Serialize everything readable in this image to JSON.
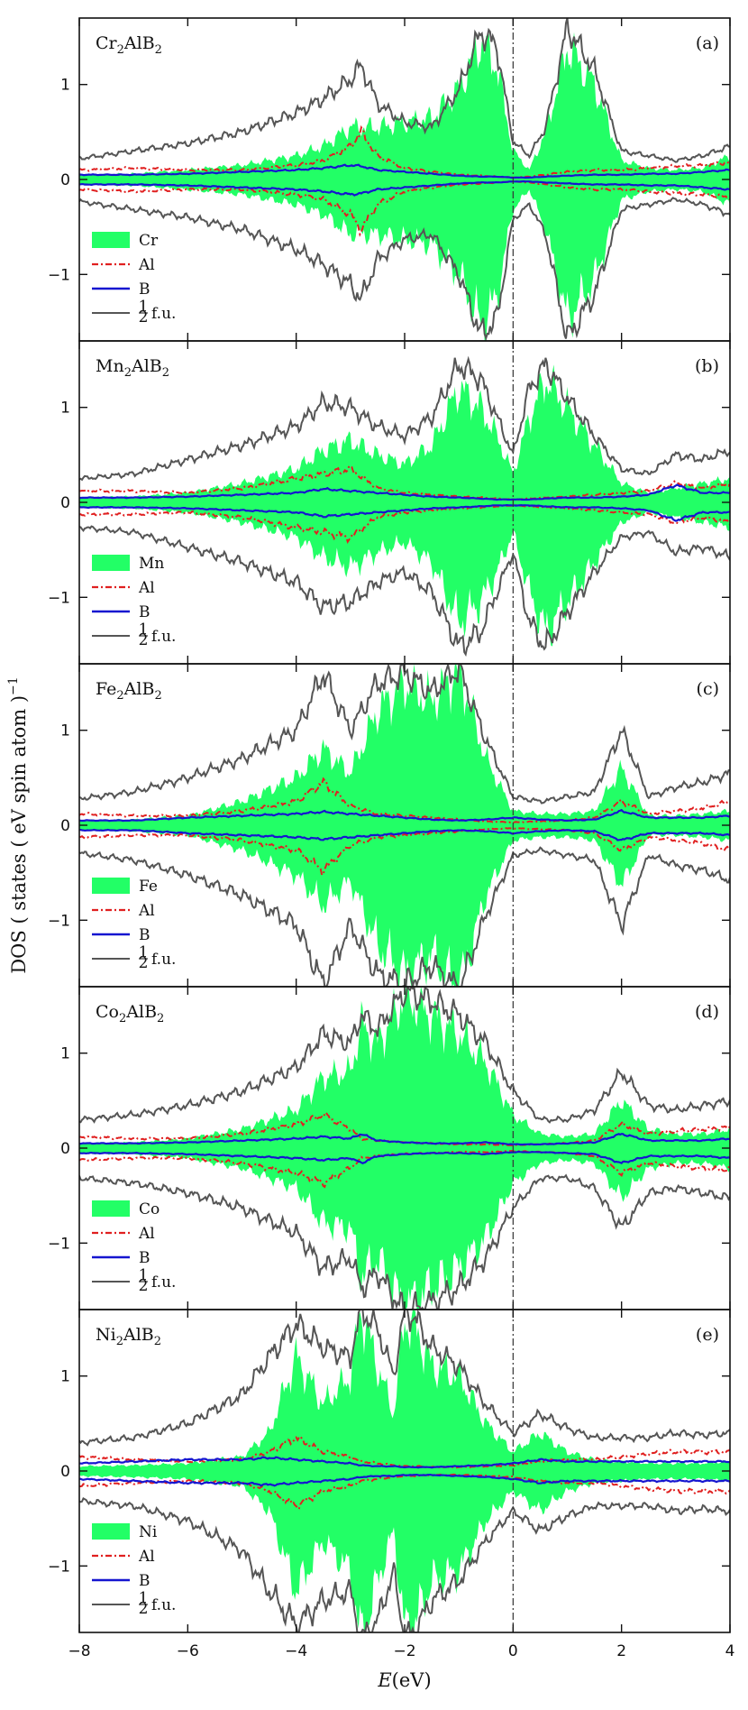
{
  "chart_data": {
    "type": "area",
    "ylabel": "DOS ( states ( eV spin atom )",
    "ylabel_exp": "−1",
    "xlabel": "E",
    "xlabel_unit": "(eV)",
    "xlim": [
      -8,
      4
    ],
    "ylim": [
      -1.7,
      1.7
    ],
    "xticks": [
      -8,
      -6,
      -4,
      -2,
      0,
      2,
      4
    ],
    "xtick_labels": [
      "−8",
      "−6",
      "−4",
      "−2",
      "0",
      "2",
      "4"
    ],
    "yticks": [
      -1,
      0,
      1
    ],
    "ytick_labels": [
      "−1",
      "0",
      "1"
    ],
    "fermi_level": 0,
    "colors": {
      "tm": "#22ff66",
      "al": "#e02020",
      "b": "#1515d0",
      "total": "#555555"
    },
    "panels": [
      {
        "tag": "(a)",
        "title_el": "Cr",
        "title_sub1": "2",
        "title_mid": "AlB",
        "title_sub2": "2",
        "legend": {
          "tm": "Cr",
          "al": "Al",
          "b": "B",
          "total_num": "1",
          "total_den": "2",
          "total_suffix": "f.u."
        },
        "series": {
          "x": [
            -8,
            -7,
            -6,
            -5,
            -4,
            -3.5,
            -3,
            -2.8,
            -2.5,
            -2,
            -1.5,
            -1,
            -0.6,
            -0.3,
            0,
            0.3,
            0.6,
            1,
            1.5,
            2,
            2.5,
            3,
            3.5,
            4
          ],
          "tm": [
            0.05,
            0.06,
            0.1,
            0.15,
            0.25,
            0.35,
            0.55,
            0.55,
            0.55,
            0.6,
            0.65,
            0.95,
            1.45,
            1.2,
            0.3,
            0.1,
            0.5,
            1.4,
            1.0,
            0.2,
            0.12,
            0.1,
            0.12,
            0.25
          ],
          "al": [
            0.1,
            0.12,
            0.1,
            0.1,
            0.15,
            0.2,
            0.35,
            0.5,
            0.25,
            0.12,
            0.08,
            0.05,
            0.04,
            0.03,
            0.02,
            0.03,
            0.05,
            0.08,
            0.1,
            0.1,
            0.12,
            0.14,
            0.15,
            0.18
          ],
          "b": [
            0.05,
            0.05,
            0.06,
            0.08,
            0.1,
            0.12,
            0.15,
            0.14,
            0.1,
            0.08,
            0.06,
            0.04,
            0.03,
            0.03,
            0.02,
            0.02,
            0.03,
            0.04,
            0.05,
            0.05,
            0.06,
            0.06,
            0.08,
            0.1
          ],
          "total": [
            0.22,
            0.3,
            0.38,
            0.5,
            0.7,
            0.85,
            1.05,
            1.2,
            0.8,
            0.6,
            0.55,
            0.95,
            1.55,
            1.4,
            0.4,
            0.25,
            0.55,
            1.6,
            1.15,
            0.3,
            0.25,
            0.2,
            0.25,
            0.35
          ]
        }
      },
      {
        "tag": "(b)",
        "title_el": "Mn",
        "title_sub1": "2",
        "title_mid": "AlB",
        "title_sub2": "2",
        "legend": {
          "tm": "Mn",
          "al": "Al",
          "b": "B",
          "total_num": "1",
          "total_den": "2",
          "total_suffix": "f.u."
        },
        "series": {
          "x": [
            -8,
            -7,
            -6,
            -5,
            -4,
            -3.5,
            -3,
            -2.5,
            -2,
            -1.5,
            -1,
            -0.6,
            -0.3,
            0,
            0.3,
            0.6,
            1,
            1.5,
            2,
            2.5,
            3,
            3.5,
            4
          ],
          "tm": [
            0.05,
            0.06,
            0.1,
            0.2,
            0.35,
            0.55,
            0.65,
            0.5,
            0.4,
            0.6,
            1.2,
            1.0,
            0.7,
            0.3,
            0.9,
            1.3,
            1.0,
            0.6,
            0.2,
            0.1,
            0.15,
            0.2,
            0.25
          ],
          "al": [
            0.12,
            0.12,
            0.1,
            0.15,
            0.25,
            0.3,
            0.35,
            0.15,
            0.1,
            0.08,
            0.06,
            0.05,
            0.04,
            0.03,
            0.04,
            0.05,
            0.06,
            0.08,
            0.1,
            0.12,
            0.2,
            0.15,
            0.2
          ],
          "b": [
            0.05,
            0.05,
            0.06,
            0.08,
            0.1,
            0.14,
            0.12,
            0.1,
            0.08,
            0.06,
            0.05,
            0.04,
            0.03,
            0.03,
            0.03,
            0.04,
            0.05,
            0.05,
            0.06,
            0.08,
            0.18,
            0.1,
            0.1
          ],
          "total": [
            0.25,
            0.3,
            0.45,
            0.6,
            0.8,
            1.05,
            1.0,
            0.8,
            0.7,
            0.9,
            1.45,
            1.3,
            0.9,
            0.5,
            1.2,
            1.45,
            1.1,
            0.7,
            0.35,
            0.3,
            0.5,
            0.45,
            0.55
          ]
        }
      },
      {
        "tag": "(c)",
        "title_el": "Fe",
        "title_sub1": "2",
        "title_mid": "AlB",
        "title_sub2": "2",
        "legend": {
          "tm": "Fe",
          "al": "Al",
          "b": "B",
          "total_num": "1",
          "total_den": "2",
          "total_suffix": "f.u."
        },
        "series": {
          "x": [
            -8,
            -7,
            -6,
            -5,
            -4,
            -3.5,
            -3,
            -2.5,
            -2,
            -1.5,
            -1,
            -0.5,
            0,
            0.5,
            1,
            1.5,
            2,
            2.5,
            3,
            3.5,
            4
          ],
          "tm": [
            0.05,
            0.06,
            0.1,
            0.25,
            0.5,
            0.8,
            0.55,
            1.2,
            1.5,
            1.3,
            1.65,
            0.7,
            0.15,
            0.12,
            0.12,
            0.15,
            0.6,
            0.1,
            0.1,
            0.12,
            0.15
          ],
          "al": [
            0.12,
            0.1,
            0.1,
            0.15,
            0.25,
            0.45,
            0.2,
            0.12,
            0.1,
            0.08,
            0.06,
            0.04,
            0.03,
            0.04,
            0.05,
            0.08,
            0.25,
            0.12,
            0.15,
            0.18,
            0.25
          ],
          "b": [
            0.05,
            0.05,
            0.08,
            0.1,
            0.12,
            0.14,
            0.12,
            0.1,
            0.08,
            0.06,
            0.05,
            0.06,
            0.08,
            0.06,
            0.05,
            0.06,
            0.15,
            0.08,
            0.08,
            0.08,
            0.1
          ],
          "total": [
            0.28,
            0.35,
            0.5,
            0.7,
            1.0,
            1.6,
            1.0,
            1.5,
            1.6,
            1.4,
            1.65,
            0.9,
            0.3,
            0.25,
            0.3,
            0.35,
            1.0,
            0.3,
            0.4,
            0.45,
            0.55
          ]
        }
      },
      {
        "tag": "(d)",
        "title_el": "Co",
        "title_sub1": "2",
        "title_mid": "AlB",
        "title_sub2": "2",
        "legend": {
          "tm": "Co",
          "al": "Al",
          "b": "B",
          "total_num": "1",
          "total_den": "2",
          "total_suffix": "f.u."
        },
        "series": {
          "x": [
            -8,
            -7,
            -6,
            -5,
            -4,
            -3.5,
            -3,
            -2.8,
            -2.5,
            -2,
            -1.5,
            -1,
            -0.5,
            0,
            0.5,
            1,
            1.5,
            2,
            2.5,
            3,
            3.5,
            4
          ],
          "tm": [
            0.05,
            0.06,
            0.1,
            0.2,
            0.4,
            0.75,
            0.8,
            1.3,
            1.1,
            1.6,
            1.4,
            1.2,
            0.9,
            0.35,
            0.15,
            0.12,
            0.15,
            0.5,
            0.2,
            0.15,
            0.15,
            0.2
          ],
          "al": [
            0.12,
            0.1,
            0.1,
            0.15,
            0.25,
            0.35,
            0.2,
            0.1,
            0.08,
            0.06,
            0.05,
            0.04,
            0.04,
            0.03,
            0.04,
            0.05,
            0.08,
            0.25,
            0.15,
            0.18,
            0.2,
            0.22
          ],
          "b": [
            0.05,
            0.05,
            0.06,
            0.08,
            0.1,
            0.12,
            0.1,
            0.15,
            0.08,
            0.06,
            0.05,
            0.05,
            0.06,
            0.04,
            0.04,
            0.05,
            0.06,
            0.15,
            0.08,
            0.08,
            0.08,
            0.1
          ],
          "total": [
            0.3,
            0.35,
            0.45,
            0.6,
            0.85,
            1.2,
            1.1,
            1.4,
            1.25,
            1.65,
            1.55,
            1.4,
            1.1,
            0.6,
            0.3,
            0.3,
            0.4,
            0.8,
            0.45,
            0.4,
            0.45,
            0.5
          ]
        }
      },
      {
        "tag": "(e)",
        "title_el": "Ni",
        "title_sub1": "2",
        "title_mid": "AlB",
        "title_sub2": "2",
        "legend": {
          "tm": "Ni",
          "al": "Al",
          "b": "B",
          "total_num": "1",
          "total_den": "2",
          "total_suffix": "f.u."
        },
        "series": {
          "x": [
            -8,
            -7,
            -6,
            -5,
            -4.5,
            -4,
            -3.5,
            -3,
            -2.8,
            -2.5,
            -2.2,
            -2,
            -1.8,
            -1.5,
            -1,
            -0.5,
            0,
            0.5,
            1,
            1.5,
            2,
            2.5,
            3,
            3.5,
            4
          ],
          "tm": [
            0.05,
            0.06,
            0.08,
            0.15,
            0.4,
            1.2,
            0.7,
            1.0,
            1.7,
            1.1,
            0.6,
            1.6,
            1.5,
            1.1,
            1.0,
            0.5,
            0.2,
            0.4,
            0.2,
            0.12,
            0.1,
            0.08,
            0.08,
            0.08,
            0.1
          ],
          "al": [
            0.15,
            0.12,
            0.1,
            0.12,
            0.2,
            0.35,
            0.2,
            0.15,
            0.1,
            0.08,
            0.06,
            0.05,
            0.05,
            0.04,
            0.04,
            0.05,
            0.06,
            0.1,
            0.12,
            0.12,
            0.15,
            0.18,
            0.2,
            0.2,
            0.2
          ],
          "b": [
            0.08,
            0.1,
            0.12,
            0.12,
            0.14,
            0.12,
            0.1,
            0.08,
            0.06,
            0.05,
            0.05,
            0.04,
            0.04,
            0.04,
            0.05,
            0.06,
            0.08,
            0.12,
            0.1,
            0.1,
            0.1,
            0.1,
            0.1,
            0.1,
            0.1
          ],
          "total": [
            0.3,
            0.35,
            0.5,
            0.8,
            1.2,
            1.55,
            1.3,
            1.2,
            1.7,
            1.5,
            1.0,
            1.7,
            1.6,
            1.3,
            1.1,
            0.7,
            0.4,
            0.6,
            0.45,
            0.35,
            0.35,
            0.35,
            0.4,
            0.38,
            0.4
          ]
        }
      }
    ]
  }
}
